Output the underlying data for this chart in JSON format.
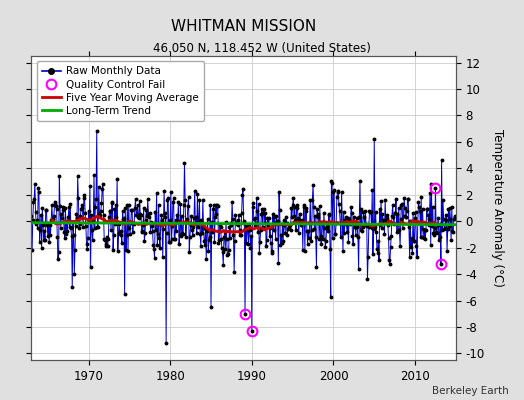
{
  "title": "WHITMAN MISSION",
  "subtitle": "46.050 N, 118.452 W (United States)",
  "ylabel_right": "Temperature Anomaly (°C)",
  "attribution": "Berkeley Earth",
  "year_start": 1963,
  "year_end": 2015,
  "xlim": [
    1963,
    2015
  ],
  "ylim": [
    -10.5,
    12.5
  ],
  "yticks": [
    -10,
    -8,
    -6,
    -4,
    -2,
    0,
    2,
    4,
    6,
    8,
    10,
    12
  ],
  "xticks": [
    1970,
    1980,
    1990,
    2000,
    2010
  ],
  "line_color": "#0000cc",
  "marker_color": "#000000",
  "moving_avg_color": "#cc0000",
  "trend_color": "#00aa00",
  "qc_fail_color": "#ff00ff",
  "plot_bg_color": "#ffffff",
  "fig_bg_color": "#e0e0e0",
  "grid_color": "#cccccc"
}
